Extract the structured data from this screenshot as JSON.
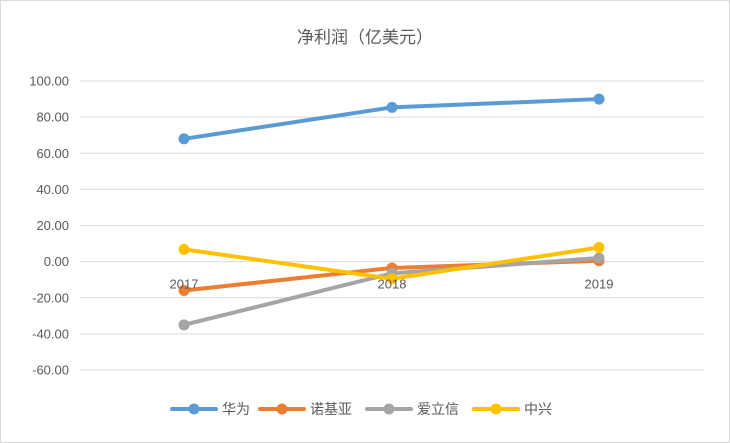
{
  "chart_data": {
    "type": "line",
    "title": "净利润（亿美元）",
    "xlabel": "",
    "ylabel": "",
    "x": [
      "2017",
      "2018",
      "2019"
    ],
    "ylim": [
      -60,
      100
    ],
    "yticks": [
      "100.00",
      "80.00",
      "60.00",
      "40.00",
      "20.00",
      "0.00",
      "-20.00",
      "-40.00",
      "-60.00"
    ],
    "grid": true,
    "legend_position": "bottom",
    "series": [
      {
        "name": "华为",
        "color": "#5b9bd5",
        "values": [
          68,
          85.4,
          90
        ]
      },
      {
        "name": "诺基亚",
        "color": "#ed7d31",
        "values": [
          -16,
          -3.5,
          0.5
        ]
      },
      {
        "name": "爱立信",
        "color": "#a5a5a5",
        "values": [
          -35,
          -6.5,
          2
        ]
      },
      {
        "name": "中兴",
        "color": "#ffc000",
        "values": [
          6.8,
          -9.5,
          7.8
        ]
      }
    ]
  }
}
